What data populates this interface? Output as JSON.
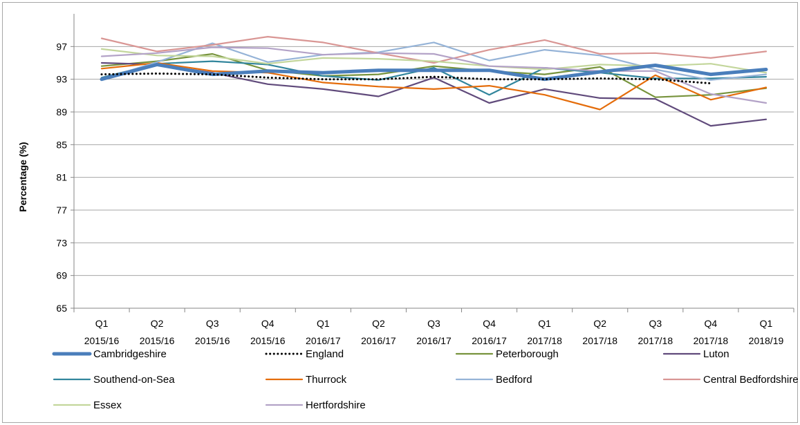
{
  "chart_data": {
    "type": "line",
    "title": "",
    "xlabel": "",
    "ylabel": "Percentage (%)",
    "ylim": [
      65,
      101
    ],
    "yticks": [
      65,
      69,
      73,
      77,
      81,
      85,
      89,
      93,
      97
    ],
    "grid": true,
    "legend_position": "bottom",
    "categories": [
      [
        "Q1",
        "2015/16"
      ],
      [
        "Q2",
        "2015/16"
      ],
      [
        "Q3",
        "2015/16"
      ],
      [
        "Q4",
        "2015/16"
      ],
      [
        "Q1",
        "2016/17"
      ],
      [
        "Q2",
        "2016/17"
      ],
      [
        "Q3",
        "2016/17"
      ],
      [
        "Q4",
        "2016/17"
      ],
      [
        "Q1",
        "2017/18"
      ],
      [
        "Q2",
        "2017/18"
      ],
      [
        "Q3",
        "2017/18"
      ],
      [
        "Q4",
        "2017/18"
      ],
      [
        "Q1",
        "2018/19"
      ]
    ],
    "series": [
      {
        "name": "Cambridgeshire",
        "color": "#4a7ebb",
        "style": "thick",
        "values": [
          93.0,
          94.8,
          93.6,
          94.0,
          93.8,
          94.1,
          94.1,
          94.1,
          93.0,
          93.9,
          94.7,
          93.6,
          94.2
        ]
      },
      {
        "name": "England",
        "color": "#000000",
        "style": "dotted",
        "values": [
          93.6,
          93.7,
          93.6,
          93.2,
          93.0,
          93.0,
          93.3,
          93.0,
          93.0,
          93.1,
          93.0,
          92.5,
          null
        ]
      },
      {
        "name": "Peterborough",
        "color": "#77933c",
        "style": "solid",
        "values": [
          94.6,
          95.2,
          96.1,
          94.1,
          93.4,
          93.6,
          94.6,
          94.0,
          93.6,
          94.5,
          90.8,
          91.1,
          91.9
        ]
      },
      {
        "name": "Luton",
        "color": "#604a7b",
        "style": "solid",
        "values": [
          95.0,
          94.8,
          93.8,
          92.4,
          91.8,
          90.9,
          93.2,
          90.1,
          91.8,
          90.7,
          90.6,
          87.3,
          88.1
        ]
      },
      {
        "name": "Southend-on-Sea",
        "color": "#31859c",
        "style": "solid",
        "values": [
          93.2,
          94.9,
          95.2,
          94.8,
          93.4,
          92.9,
          94.4,
          91.1,
          94.4,
          93.8,
          93.1,
          93.1,
          93.3
        ]
      },
      {
        "name": "Thurrock",
        "color": "#e46c0a",
        "style": "solid",
        "values": [
          94.3,
          95.0,
          94.0,
          93.8,
          92.6,
          92.1,
          91.8,
          92.2,
          91.1,
          89.3,
          93.5,
          90.5,
          92.0
        ]
      },
      {
        "name": "Bedford",
        "color": "#95b3d7",
        "style": "solid",
        "values": [
          93.0,
          95.1,
          97.4,
          95.1,
          96.0,
          96.3,
          97.5,
          95.3,
          96.6,
          95.9,
          94.2,
          92.9,
          93.6
        ]
      },
      {
        "name": "Central Bedfordshire",
        "color": "#d99694",
        "style": "solid",
        "values": [
          98.0,
          96.4,
          97.2,
          98.2,
          97.5,
          96.2,
          95.0,
          96.6,
          97.8,
          96.1,
          96.2,
          95.6,
          96.4
        ]
      },
      {
        "name": "Essex",
        "color": "#c3d69b",
        "style": "solid",
        "values": [
          96.7,
          95.9,
          95.8,
          94.9,
          95.6,
          95.5,
          95.2,
          94.6,
          94.2,
          94.8,
          94.6,
          94.9,
          93.8
        ]
      },
      {
        "name": "Hertfordshire",
        "color": "#b3a2c7",
        "style": "solid",
        "values": [
          95.8,
          96.2,
          96.9,
          96.8,
          96.0,
          96.2,
          96.1,
          94.6,
          94.4,
          94.0,
          94.0,
          91.2,
          90.1
        ]
      }
    ]
  }
}
